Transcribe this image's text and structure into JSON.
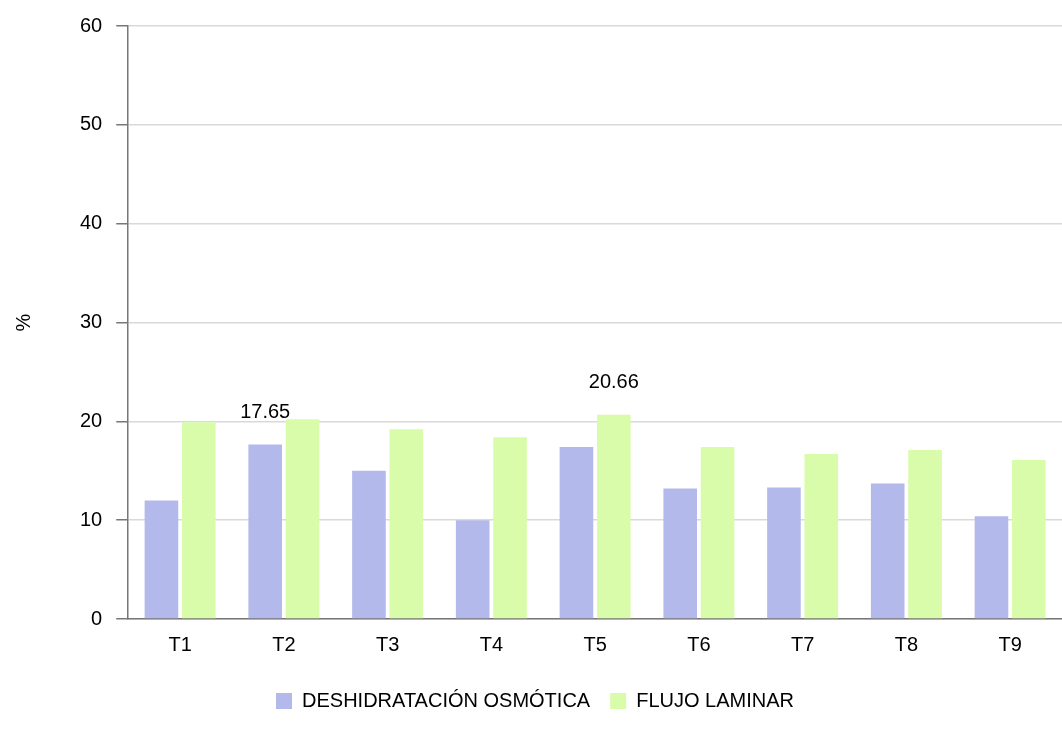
{
  "chart_data": {
    "type": "bar",
    "ylabel": "%",
    "categories": [
      "T1",
      "T2",
      "T3",
      "T4",
      "T5",
      "T6",
      "T7",
      "T8",
      "T9"
    ],
    "series": [
      {
        "name": "DESHIDRATACIÓN OSMÓTICA",
        "color": "#b3b9ea",
        "values": [
          12.0,
          17.65,
          15.0,
          10.0,
          17.4,
          13.2,
          13.3,
          13.7,
          10.4
        ],
        "value_labels": [
          null,
          "17.65",
          null,
          null,
          null,
          null,
          null,
          null,
          null
        ]
      },
      {
        "name": "FLUJO LAMINAR",
        "color": "#d9fcab",
        "values": [
          19.9,
          20.2,
          19.2,
          18.4,
          20.66,
          17.4,
          16.7,
          17.1,
          16.1
        ],
        "value_labels": [
          null,
          null,
          null,
          null,
          "20.66",
          null,
          null,
          null,
          null
        ]
      }
    ],
    "ylim": [
      0,
      60
    ],
    "yticks": [
      0,
      10,
      20,
      30,
      40,
      50,
      60
    ],
    "grid": "y",
    "legend": "bottom"
  }
}
